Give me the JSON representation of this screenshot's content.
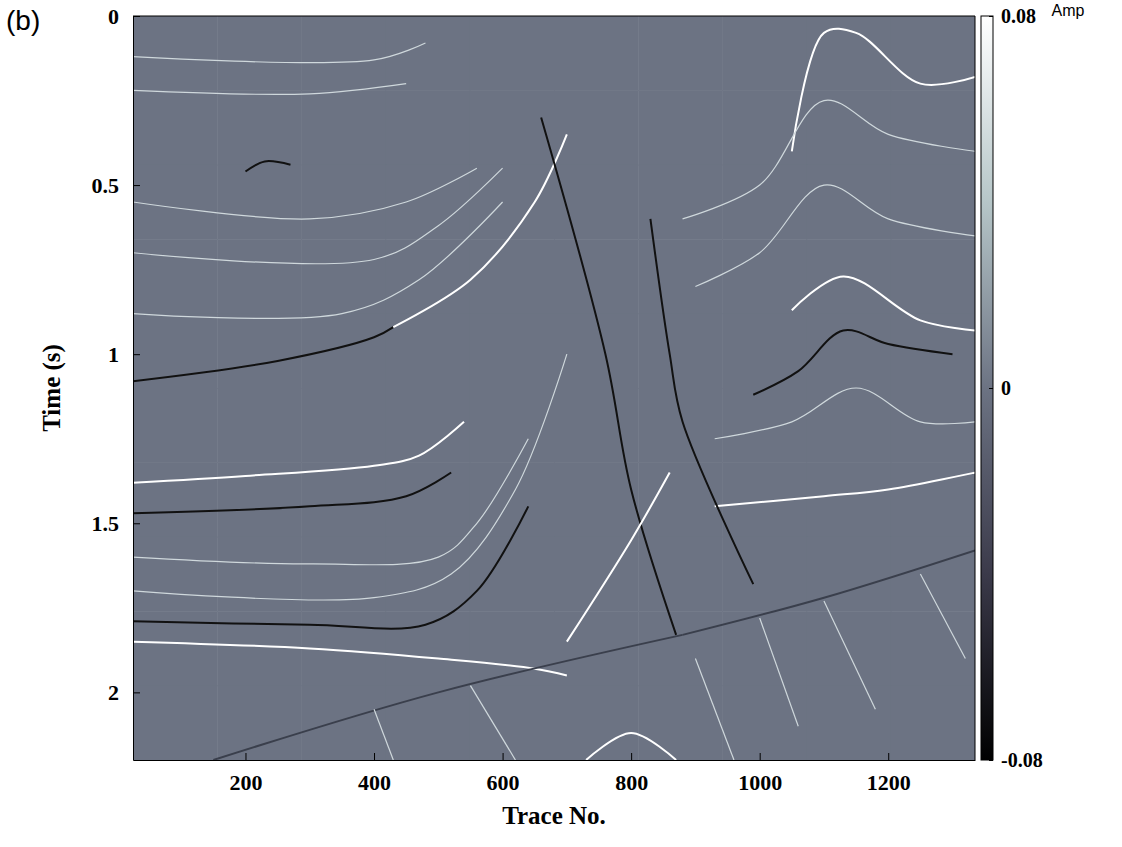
{
  "chart_data": {
    "type": "heatmap",
    "panel_label": "(b)",
    "x_label": "Trace No.",
    "y_label": "Time (s)",
    "xlim": [
      25,
      1335
    ],
    "ylim": [
      0,
      2.2
    ],
    "xticks": [
      200,
      400,
      600,
      800,
      1000,
      1200
    ],
    "yticks": [
      0,
      0.5,
      1,
      1.5,
      2
    ],
    "grid": false,
    "colorbar_title": "Amp",
    "colorbar_range": [
      -0.08,
      0.08
    ],
    "colorbar_ticks": [
      -0.08,
      0,
      0.08
    ],
    "cells": {
      "x": [
        25,
        156,
        287,
        418,
        549,
        680,
        811,
        942,
        1073,
        1204,
        1335
      ],
      "y": [
        0,
        0.22,
        0.44,
        0.66,
        0.88,
        1.1,
        1.32,
        1.54,
        1.76,
        1.98,
        2.2
      ],
      "values": [
        [
          0,
          0,
          0,
          0,
          0,
          0,
          0,
          0,
          0,
          0
        ],
        [
          0,
          0,
          0,
          0,
          0,
          0,
          0,
          0,
          0,
          0
        ],
        [
          0,
          0,
          0,
          0,
          0,
          0,
          0,
          0,
          0,
          0
        ],
        [
          0,
          0,
          0,
          0,
          0,
          0,
          0,
          0,
          0,
          0
        ],
        [
          0,
          0,
          0,
          0,
          0,
          0,
          0,
          0,
          0,
          0
        ],
        [
          0,
          0,
          0,
          0,
          0,
          0,
          0,
          0,
          0,
          0
        ],
        [
          0,
          0,
          0,
          0,
          0,
          0,
          0,
          0,
          0,
          0
        ],
        [
          0,
          0,
          0,
          0,
          0,
          0,
          0,
          0,
          0,
          0
        ],
        [
          0,
          0,
          0,
          0,
          0,
          0,
          0,
          0,
          0,
          0
        ],
        [
          0,
          0,
          0,
          0,
          0,
          0,
          0,
          0,
          0,
          0
        ]
      ]
    },
    "series": [
      {
        "type": "line",
        "color": "#ffffff",
        "x": [
          25,
          300,
          500,
          650,
          700
        ],
        "values": [
          1.85,
          1.87,
          1.9,
          1.93,
          1.95
        ]
      },
      {
        "type": "line",
        "color": "#111111",
        "x": [
          25,
          300,
          480,
          560,
          640
        ],
        "values": [
          1.79,
          1.8,
          1.8,
          1.7,
          1.45
        ]
      },
      {
        "type": "line",
        "color": "#ffffff",
        "x": [
          25,
          200,
          400,
          470,
          540
        ],
        "values": [
          1.38,
          1.36,
          1.33,
          1.3,
          1.2
        ]
      },
      {
        "type": "line",
        "color": "#111111",
        "x": [
          25,
          300,
          450,
          520
        ],
        "values": [
          1.47,
          1.45,
          1.42,
          1.35
        ]
      },
      {
        "type": "line",
        "color": "#111111",
        "x": [
          25,
          250,
          400,
          430
        ],
        "values": [
          1.08,
          1.02,
          0.95,
          0.92
        ]
      },
      {
        "type": "line",
        "color": "#ffffff",
        "x": [
          430,
          550,
          650,
          700
        ],
        "values": [
          0.92,
          0.78,
          0.55,
          0.35
        ]
      },
      {
        "type": "line",
        "color": "#cfd8dc",
        "x": [
          25,
          400,
          480
        ],
        "values": [
          0.12,
          0.13,
          0.08
        ]
      },
      {
        "type": "line",
        "color": "#cfd8dc",
        "x": [
          25,
          300,
          450
        ],
        "values": [
          0.22,
          0.23,
          0.2
        ]
      },
      {
        "type": "line",
        "color": "#cfd8dc",
        "x": [
          25,
          300,
          450,
          560
        ],
        "values": [
          0.55,
          0.6,
          0.55,
          0.45
        ]
      },
      {
        "type": "line",
        "color": "#cfd8dc",
        "x": [
          25,
          400,
          500,
          600
        ],
        "values": [
          0.7,
          0.72,
          0.62,
          0.45
        ]
      },
      {
        "type": "line",
        "color": "#cfd8dc",
        "x": [
          25,
          350,
          470,
          600
        ],
        "values": [
          0.88,
          0.88,
          0.78,
          0.55
        ]
      },
      {
        "type": "line",
        "color": "#cfd8dc",
        "x": [
          25,
          300,
          500,
          560,
          640
        ],
        "values": [
          1.6,
          1.62,
          1.6,
          1.5,
          1.25
        ]
      },
      {
        "type": "line",
        "color": "#cfd8dc",
        "x": [
          25,
          400,
          520,
          620,
          700
        ],
        "values": [
          1.7,
          1.72,
          1.65,
          1.4,
          1.0
        ]
      },
      {
        "type": "line",
        "color": "#111111",
        "x": [
          200,
          230,
          270
        ],
        "values": [
          0.46,
          0.43,
          0.44
        ]
      },
      {
        "type": "line",
        "color": "#ffffff",
        "x": [
          1050,
          1100,
          1150,
          1250,
          1335
        ],
        "values": [
          0.4,
          0.05,
          0.05,
          0.2,
          0.18
        ]
      },
      {
        "type": "line",
        "color": "#cfd8dc",
        "x": [
          880,
          1000,
          1100,
          1200,
          1335
        ],
        "values": [
          0.6,
          0.5,
          0.25,
          0.35,
          0.4
        ]
      },
      {
        "type": "line",
        "color": "#ffffff",
        "x": [
          1050,
          1130,
          1250,
          1335
        ],
        "values": [
          0.87,
          0.77,
          0.9,
          0.93
        ]
      },
      {
        "type": "line",
        "color": "#cfd8dc",
        "x": [
          900,
          1000,
          1100,
          1200,
          1335
        ],
        "values": [
          0.8,
          0.7,
          0.5,
          0.6,
          0.65
        ]
      },
      {
        "type": "line",
        "color": "#111111",
        "x": [
          990,
          1060,
          1130,
          1200,
          1300
        ],
        "values": [
          1.12,
          1.05,
          0.93,
          0.97,
          1.0
        ]
      },
      {
        "type": "line",
        "color": "#cfd8dc",
        "x": [
          930,
          1050,
          1150,
          1250,
          1335
        ],
        "values": [
          1.25,
          1.2,
          1.1,
          1.2,
          1.2
        ]
      },
      {
        "type": "line",
        "color": "#ffffff",
        "x": [
          930,
          1100,
          1200,
          1335
        ],
        "values": [
          1.45,
          1.42,
          1.4,
          1.35
        ]
      },
      {
        "type": "line",
        "color": "#3a3f4c",
        "x": [
          880,
          1100,
          1335
        ],
        "values": [
          1.83,
          1.72,
          1.58
        ]
      },
      {
        "type": "line",
        "color": "#3a3f4c",
        "x": [
          150,
          500,
          880
        ],
        "values": [
          2.2,
          2.0,
          1.83
        ]
      },
      {
        "type": "line",
        "color": "#111111",
        "x": [
          660,
          760,
          800,
          870
        ],
        "values": [
          0.3,
          1.0,
          1.4,
          1.83
        ]
      },
      {
        "type": "line",
        "color": "#111111",
        "x": [
          830,
          860,
          880,
          990
        ],
        "values": [
          0.6,
          1.0,
          1.2,
          1.68
        ]
      },
      {
        "type": "line",
        "color": "#ffffff",
        "x": [
          700,
          800,
          860
        ],
        "values": [
          1.85,
          1.55,
          1.35
        ]
      },
      {
        "type": "line",
        "color": "#cfd8dc",
        "x": [
          900,
          960
        ],
        "values": [
          1.9,
          2.2
        ]
      },
      {
        "type": "line",
        "color": "#cfd8dc",
        "x": [
          1000,
          1060
        ],
        "values": [
          1.78,
          2.1
        ]
      },
      {
        "type": "line",
        "color": "#cfd8dc",
        "x": [
          1100,
          1180
        ],
        "values": [
          1.73,
          2.05
        ]
      },
      {
        "type": "line",
        "color": "#cfd8dc",
        "x": [
          1250,
          1320
        ],
        "values": [
          1.65,
          1.9
        ]
      },
      {
        "type": "line",
        "color": "#cfd8dc",
        "x": [
          400,
          430
        ],
        "values": [
          2.05,
          2.2
        ]
      },
      {
        "type": "line",
        "color": "#cfd8dc",
        "x": [
          550,
          620
        ],
        "values": [
          1.98,
          2.2
        ]
      },
      {
        "type": "line",
        "color": "#ffffff",
        "x": [
          730,
          800,
          870
        ],
        "values": [
          2.2,
          2.12,
          2.2
        ]
      }
    ]
  }
}
